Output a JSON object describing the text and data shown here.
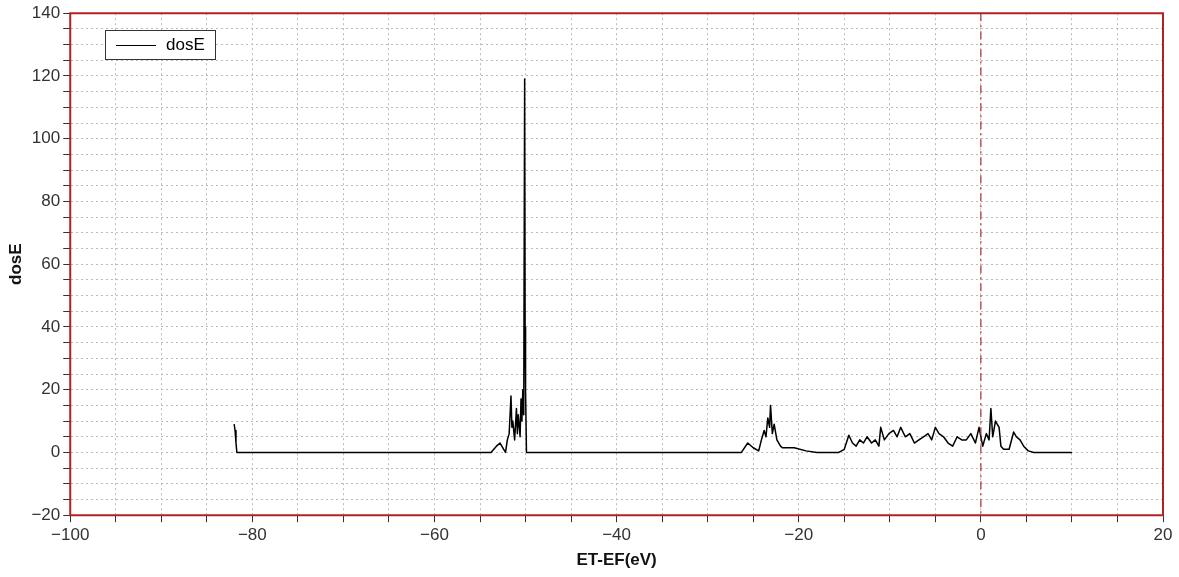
{
  "chart_data": {
    "type": "line",
    "xlabel": "ET-EF(eV)",
    "ylabel": "dosE",
    "legend": "top left",
    "grid": true,
    "marker": "none",
    "line_style": "solid",
    "xlim": [
      -100,
      20
    ],
    "ylim": [
      -20,
      140
    ],
    "xticks": [
      -100,
      {
        "value": -95,
        "label": null
      },
      {
        "value": -90,
        "label": null
      },
      {
        "value": -85,
        "label": null
      },
      -80,
      {
        "value": -75,
        "label": null
      },
      {
        "value": -70,
        "label": null
      },
      {
        "value": -65,
        "label": null
      },
      -60,
      {
        "value": -55,
        "label": null
      },
      {
        "value": -50,
        "label": null
      },
      {
        "value": -45,
        "label": null
      },
      -40,
      {
        "value": -35,
        "label": null
      },
      {
        "value": -30,
        "label": null
      },
      {
        "value": -25,
        "label": null
      },
      -20,
      {
        "value": -15,
        "label": null
      },
      {
        "value": -10,
        "label": null
      },
      {
        "value": -5,
        "label": null
      },
      0,
      {
        "value": 5,
        "label": null
      },
      {
        "value": 10,
        "label": null
      },
      {
        "value": 15,
        "label": null
      },
      20
    ],
    "yticks": [
      -20,
      {
        "value": -15,
        "label": null
      },
      {
        "value": -10,
        "label": null
      },
      {
        "value": -5,
        "label": null
      },
      0,
      {
        "value": 5,
        "label": null
      },
      {
        "value": 10,
        "label": null
      },
      {
        "value": 15,
        "label": null
      },
      20,
      {
        "value": 25,
        "label": null
      },
      {
        "value": 30,
        "label": null
      },
      {
        "value": 35,
        "label": null
      },
      40,
      {
        "value": 45,
        "label": null
      },
      {
        "value": 50,
        "label": null
      },
      {
        "value": 55,
        "label": null
      },
      60,
      {
        "value": 65,
        "label": null
      },
      {
        "value": 70,
        "label": null
      },
      {
        "value": 75,
        "label": null
      },
      80,
      {
        "value": 85,
        "label": null
      },
      {
        "value": 90,
        "label": null
      },
      {
        "value": 95,
        "label": null
      },
      100,
      {
        "value": 105,
        "label": null
      },
      {
        "value": 110,
        "label": null
      },
      {
        "value": 115,
        "label": null
      },
      120,
      {
        "value": 125,
        "label": null
      },
      {
        "value": 130,
        "label": null
      },
      {
        "value": 135,
        "label": null
      },
      140
    ],
    "ref_lines": [
      {
        "axis": "x",
        "value": 0,
        "color": "#b03030",
        "line_style": "dashed"
      }
    ],
    "series": [
      {
        "name": "dosE",
        "color": "#000000",
        "x": [
          -82,
          -81.9,
          -81.8,
          -81.7,
          -60,
          -53.8,
          -53.2,
          -52.8,
          -52.4,
          -52.2,
          -52,
          -51.8,
          -51.6,
          -51.5,
          -51.4,
          -51.2,
          -51,
          -50.9,
          -50.8,
          -50.6,
          -50.5,
          -50.4,
          -50.3,
          -50.2,
          -50.1,
          -50.05,
          -50,
          -49.9,
          -40,
          -26.3,
          -25.6,
          -25,
          -24.4,
          -24.1,
          -23.8,
          -23.6,
          -23.4,
          -23.2,
          -23.1,
          -22.9,
          -22.7,
          -22.4,
          -22,
          -21.8,
          -20.5,
          -19.2,
          -18,
          -15.6,
          -15,
          -14.5,
          -14.1,
          -13.7,
          -13.3,
          -12.9,
          -12.5,
          -12,
          -11.6,
          -11.2,
          -11,
          -10.6,
          -10.1,
          -9.6,
          -9.2,
          -8.8,
          -8.3,
          -7.8,
          -7.3,
          -6.8,
          -6.3,
          -5.8,
          -5.4,
          -5,
          -4.6,
          -4.1,
          -3.6,
          -3.1,
          -2.6,
          -2.1,
          -1.6,
          -1.1,
          -0.6,
          -0.2,
          0.2,
          0.6,
          0.9,
          1.1,
          1.3,
          1.6,
          2,
          2.2,
          2.5,
          3.1,
          3.6,
          3.9,
          4.3,
          4.7,
          5.2,
          5.8,
          10
        ],
        "values": [
          9,
          7,
          3,
          0,
          0,
          0,
          2,
          3,
          1,
          0,
          4,
          6,
          18,
          8,
          10,
          4,
          14,
          6,
          12,
          5,
          17,
          10,
          20,
          12,
          119,
          40,
          20,
          0,
          0,
          0,
          3,
          1.5,
          0.5,
          4,
          7,
          5,
          11,
          8,
          15,
          6,
          9,
          4,
          2,
          1.5,
          1.5,
          0.5,
          0,
          0,
          1,
          5.5,
          3,
          2,
          4,
          3,
          5,
          3,
          4,
          2,
          8,
          4,
          6,
          7,
          5,
          8,
          5,
          6,
          3,
          4,
          5,
          6,
          4,
          8,
          6,
          5,
          3,
          2,
          5,
          4,
          4,
          6,
          3,
          8,
          2,
          6,
          4,
          14,
          5,
          10,
          8,
          2,
          1,
          1,
          6.5,
          5,
          4,
          2,
          0.5,
          0,
          0
        ]
      }
    ]
  }
}
